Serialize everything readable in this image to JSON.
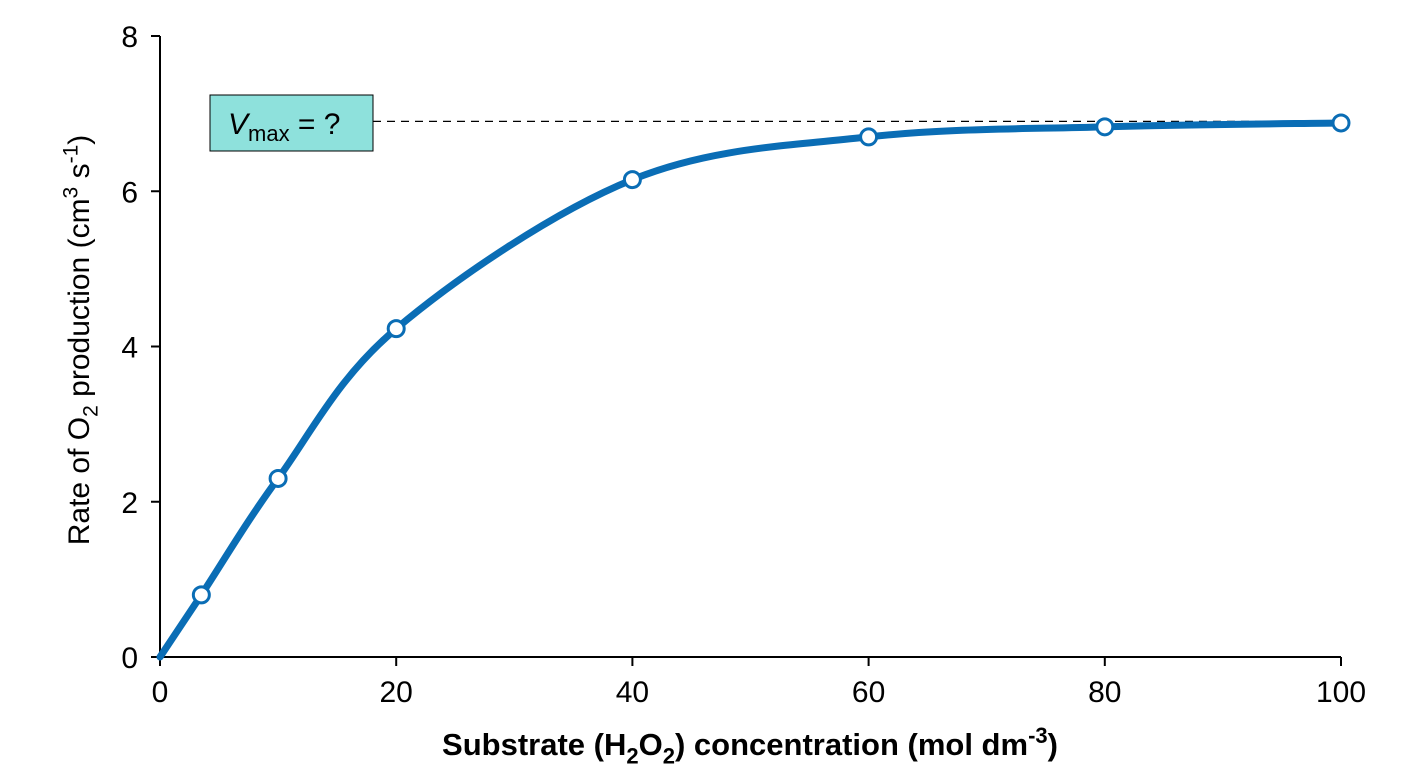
{
  "chart_data": {
    "type": "line",
    "title": "",
    "xlabel": {
      "parts": [
        {
          "text": "Substrate (H",
          "shift": "none"
        },
        {
          "text": "2",
          "shift": "sub"
        },
        {
          "text": "O",
          "shift": "none"
        },
        {
          "text": "2",
          "shift": "sub"
        },
        {
          "text": ") concentration (mol dm",
          "shift": "none"
        },
        {
          "text": "-3",
          "shift": "sup"
        },
        {
          "text": ")",
          "shift": "none"
        }
      ]
    },
    "ylabel": {
      "parts": [
        {
          "text": "Rate of O",
          "shift": "none"
        },
        {
          "text": "2",
          "shift": "sub"
        },
        {
          "text": " production (cm",
          "shift": "none"
        },
        {
          "text": "3",
          "shift": "sup"
        },
        {
          "text": " s",
          "shift": "none"
        },
        {
          "text": "-1",
          "shift": "sup"
        },
        {
          "text": ")",
          "shift": "none"
        }
      ]
    },
    "xlim": [
      0,
      100
    ],
    "ylim": [
      0,
      8
    ],
    "x_ticks": [
      0,
      20,
      40,
      60,
      80,
      100
    ],
    "y_ticks": [
      0,
      2,
      4,
      6,
      8
    ],
    "grid": false,
    "series": [
      {
        "color": "#0a6db5",
        "points": [
          {
            "x": 3.5,
            "y": 0.8
          },
          {
            "x": 10,
            "y": 2.3
          },
          {
            "x": 20,
            "y": 4.23
          },
          {
            "x": 40,
            "y": 6.15
          },
          {
            "x": 60,
            "y": 6.7
          },
          {
            "x": 80,
            "y": 6.83
          },
          {
            "x": 100,
            "y": 6.88
          }
        ]
      }
    ],
    "curve_start": {
      "x": 0,
      "y": 0
    },
    "reference_line": {
      "y": 6.9,
      "style": "dashed"
    },
    "annotation": {
      "v_symbol": "V",
      "subscript": "max",
      "rest": " = ?",
      "fill_color": "#8ee1dc"
    }
  }
}
